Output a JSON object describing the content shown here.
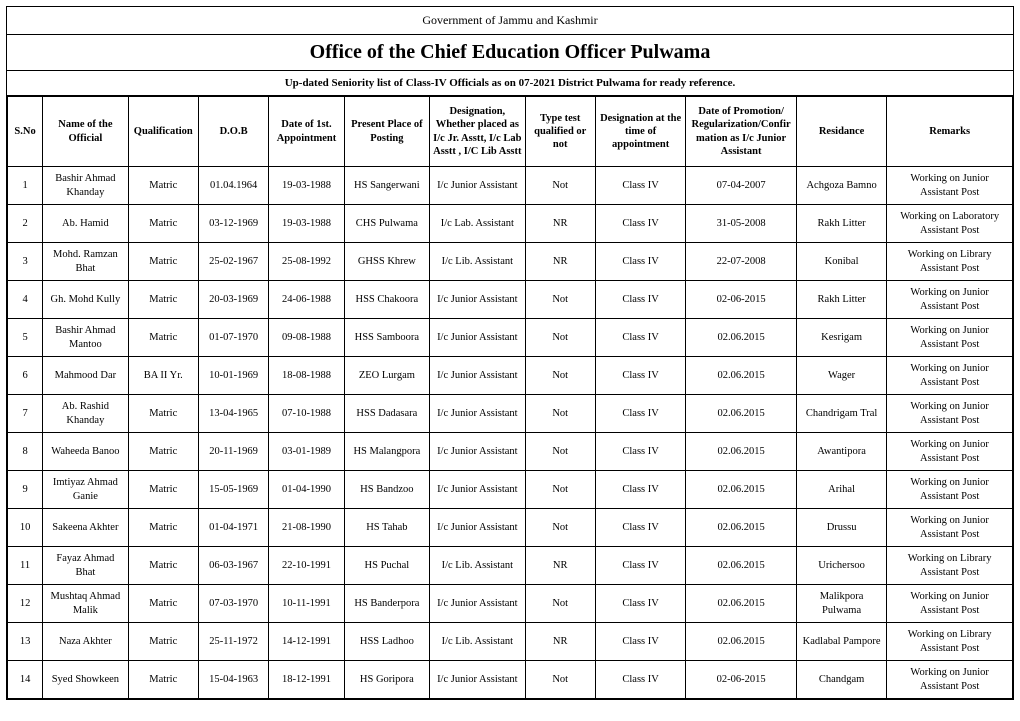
{
  "header": {
    "government": "Government of Jammu and Kashmir",
    "office": "Office of the Chief Education Officer Pulwama",
    "subtitle": "Up-dated Seniority list of Class-IV Officials as on 07-2021 District Pulwama for ready reference."
  },
  "columns": [
    "S.No",
    "Name of the Official",
    "Qualification",
    "D.O.B",
    "Date of 1st. Appointment",
    "Present Place of Posting",
    "Designation, Whether placed as I/c Jr. Asstt, I/c Lab Asstt , I/C Lib Asstt",
    "Type test qualified or not",
    "Designation at the time of appointment",
    "Date of Promotion/ Regularization/Confirmation as I/c Junior Assistant",
    "Residance",
    "Remarks"
  ],
  "rows": [
    {
      "sno": "1",
      "name": "Bashir Ahmad Khanday",
      "qual": "Matric",
      "dob": "01.04.1964",
      "appt": "19-03-1988",
      "place": "HS Sangerwani",
      "desig": "I/c Junior Assistant",
      "type": "Not",
      "datime": "Class IV",
      "promo": "07-04-2007",
      "res": "Achgoza Bamno",
      "rem": "Working on Junior Assistant Post"
    },
    {
      "sno": "2",
      "name": "Ab. Hamid",
      "qual": "Matric",
      "dob": "03-12-1969",
      "appt": "19-03-1988",
      "place": "CHS Pulwama",
      "desig": "I/c Lab. Assistant",
      "type": "NR",
      "datime": "Class IV",
      "promo": "31-05-2008",
      "res": "Rakh Litter",
      "rem": "Working on Laboratory Assistant Post"
    },
    {
      "sno": "3",
      "name": "Mohd. Ramzan Bhat",
      "qual": "Matric",
      "dob": "25-02-1967",
      "appt": "25-08-1992",
      "place": "GHSS Khrew",
      "desig": "I/c Lib. Assistant",
      "type": "NR",
      "datime": "Class IV",
      "promo": "22-07-2008",
      "res": "Konibal",
      "rem": "Working on Library Assistant Post"
    },
    {
      "sno": "4",
      "name": "Gh. Mohd Kully",
      "qual": "Matric",
      "dob": "20-03-1969",
      "appt": "24-06-1988",
      "place": "HSS Chakoora",
      "desig": "I/c Junior Assistant",
      "type": "Not",
      "datime": "Class IV",
      "promo": "02-06-2015",
      "res": "Rakh Litter",
      "rem": "Working on Junior Assistant Post"
    },
    {
      "sno": "5",
      "name": "Bashir Ahmad Mantoo",
      "qual": "Matric",
      "dob": "01-07-1970",
      "appt": "09-08-1988",
      "place": "HSS Samboora",
      "desig": "I/c Junior Assistant",
      "type": "Not",
      "datime": "Class IV",
      "promo": "02.06.2015",
      "res": "Kesrigam",
      "rem": "Working on Junior Assistant Post"
    },
    {
      "sno": "6",
      "name": "Mahmood Dar",
      "qual": "BA II Yr.",
      "dob": "10-01-1969",
      "appt": "18-08-1988",
      "place": "ZEO Lurgam",
      "desig": "I/c Junior Assistant",
      "type": "Not",
      "datime": "Class IV",
      "promo": "02.06.2015",
      "res": "Wager",
      "rem": "Working on Junior Assistant Post"
    },
    {
      "sno": "7",
      "name": "Ab. Rashid Khanday",
      "qual": "Matric",
      "dob": "13-04-1965",
      "appt": "07-10-1988",
      "place": "HSS Dadasara",
      "desig": "I/c Junior Assistant",
      "type": "Not",
      "datime": "Class IV",
      "promo": "02.06.2015",
      "res": "Chandrigam Tral",
      "rem": "Working on Junior Assistant Post"
    },
    {
      "sno": "8",
      "name": "Waheeda Banoo",
      "qual": "Matric",
      "dob": "20-11-1969",
      "appt": "03-01-1989",
      "place": "HS Malangpora",
      "desig": "I/c Junior Assistant",
      "type": "Not",
      "datime": "Class IV",
      "promo": "02.06.2015",
      "res": "Awantipora",
      "rem": "Working on Junior Assistant Post"
    },
    {
      "sno": "9",
      "name": "Imtiyaz Ahmad Ganie",
      "qual": "Matric",
      "dob": "15-05-1969",
      "appt": "01-04-1990",
      "place": "HS Bandzoo",
      "desig": "I/c Junior Assistant",
      "type": "Not",
      "datime": "Class IV",
      "promo": "02.06.2015",
      "res": "Arihal",
      "rem": "Working on Junior Assistant Post"
    },
    {
      "sno": "10",
      "name": "Sakeena Akhter",
      "qual": "Matric",
      "dob": "01-04-1971",
      "appt": "21-08-1990",
      "place": "HS Tahab",
      "desig": "I/c Junior Assistant",
      "type": "Not",
      "datime": "Class IV",
      "promo": "02.06.2015",
      "res": "Drussu",
      "rem": "Working on Junior Assistant Post"
    },
    {
      "sno": "11",
      "name": "Fayaz Ahmad Bhat",
      "qual": "Matric",
      "dob": "06-03-1967",
      "appt": "22-10-1991",
      "place": "HS Puchal",
      "desig": "I/c Lib. Assistant",
      "type": "NR",
      "datime": "Class IV",
      "promo": "02.06.2015",
      "res": "Urichersoo",
      "rem": "Working on Library Assistant Post"
    },
    {
      "sno": "12",
      "name": "Mushtaq Ahmad Malik",
      "qual": "Matric",
      "dob": "07-03-1970",
      "appt": "10-11-1991",
      "place": "HS Banderpora",
      "desig": "I/c Junior Assistant",
      "type": "Not",
      "datime": "Class IV",
      "promo": "02.06.2015",
      "res": "Malikpora Pulwama",
      "rem": "Working on Junior Assistant Post"
    },
    {
      "sno": "13",
      "name": "Naza Akhter",
      "qual": "Matric",
      "dob": "25-11-1972",
      "appt": "14-12-1991",
      "place": "HSS Ladhoo",
      "desig": "I/c Lib. Assistant",
      "type": "NR",
      "datime": "Class IV",
      "promo": "02.06.2015",
      "res": "Kadlabal Pampore",
      "rem": "Working on Library Assistant Post"
    },
    {
      "sno": "14",
      "name": "Syed Showkeen",
      "qual": "Matric",
      "dob": "15-04-1963",
      "appt": "18-12-1991",
      "place": "HS Goripora",
      "desig": "I/c Junior Assistant",
      "type": "Not",
      "datime": "Class IV",
      "promo": "02-06-2015",
      "res": "Chandgam",
      "rem": "Working on Junior Assistant Post"
    }
  ]
}
